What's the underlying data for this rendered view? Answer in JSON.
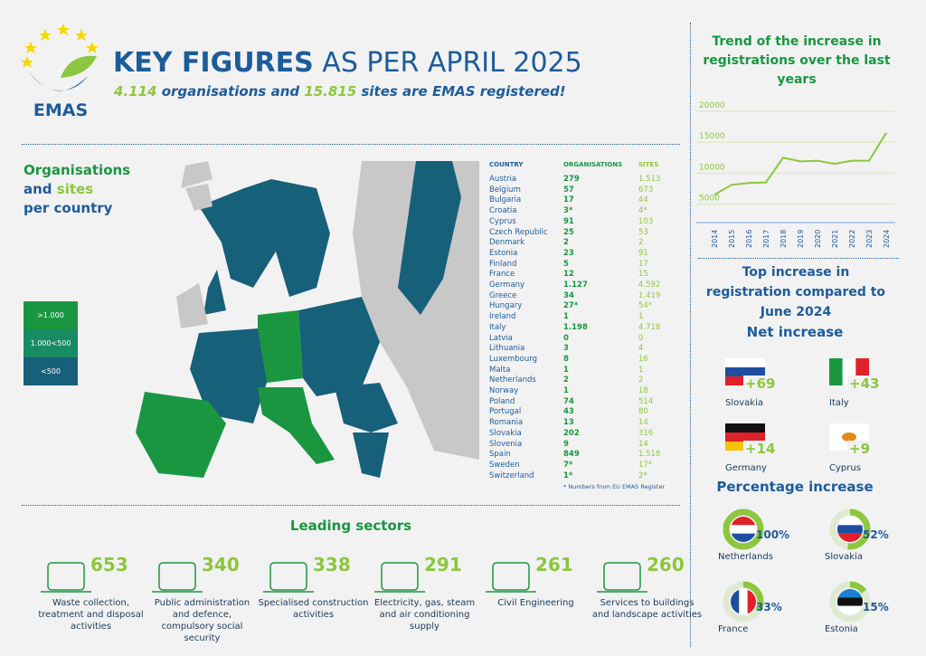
{
  "header": {
    "logo_text": "EMAS",
    "title_bold": "KEY FIGURES",
    "title_rest": "AS PER APRIL 2025",
    "subtitle": {
      "organisations": "4.114",
      "middle": "organisations and",
      "sites": "15.815",
      "end": "sites are EMAS registered!"
    }
  },
  "map": {
    "heading": {
      "line1": "Organisations",
      "and": "and",
      "sites": "sites",
      "line3": "per country"
    },
    "legend": [
      ">1.000",
      "1.000<500",
      "<500"
    ]
  },
  "table": {
    "headers": [
      "COUNTRY",
      "ORGANISATIONS",
      "SITES"
    ],
    "rows": [
      [
        "Austria",
        "279",
        "1.513"
      ],
      [
        "Belgium",
        "57",
        "673"
      ],
      [
        "Bulgaria",
        "17",
        "44"
      ],
      [
        "Croatia",
        "3*",
        "4*"
      ],
      [
        "Cyprus",
        "91",
        "103"
      ],
      [
        "Czech Republic",
        "25",
        "53"
      ],
      [
        "Denmark",
        "2",
        "2"
      ],
      [
        "Estonia",
        "23",
        "91"
      ],
      [
        "Finland",
        "5",
        "17"
      ],
      [
        "France",
        "12",
        "15"
      ],
      [
        "Germany",
        "1.127",
        "4.592"
      ],
      [
        "Greece",
        "34",
        "1.419"
      ],
      [
        "Hungary",
        "27*",
        "54*"
      ],
      [
        "Ireland",
        "1",
        "1"
      ],
      [
        "Italy",
        "1.198",
        "4.718"
      ],
      [
        "Latvia",
        "0",
        "0"
      ],
      [
        "Lithuania",
        "3",
        "4"
      ],
      [
        "Luxembourg",
        "8",
        "16"
      ],
      [
        "Malta",
        "1",
        "1"
      ],
      [
        "Netherlands",
        "2",
        "2"
      ],
      [
        "Norway",
        "1",
        "18"
      ],
      [
        "Poland",
        "74",
        "514"
      ],
      [
        "Portugal",
        "43",
        "80"
      ],
      [
        "Romania",
        "13",
        "14"
      ],
      [
        "Slovakia",
        "202",
        "316"
      ],
      [
        "Slovenia",
        "9",
        "14"
      ],
      [
        "Spain",
        "849",
        "1.518"
      ],
      [
        "Sweden",
        "7*",
        "17*"
      ],
      [
        "Switzerland",
        "1*",
        "2*"
      ]
    ],
    "footnote": "* Numbers from EU EMAS Register"
  },
  "chart_data": {
    "type": "line",
    "title": "Trend of the increase in registrations over the last years",
    "x": [
      "2014",
      "2015",
      "2016",
      "2017",
      "2018",
      "2019",
      "2020",
      "2021",
      "2022",
      "2023",
      "2024"
    ],
    "series": [
      {
        "name": "registrations",
        "color": "#8dc63f",
        "values": [
          6500,
          8100,
          8400,
          8500,
          12500,
          11900,
          12000,
          11500,
          12000,
          12000,
          16500
        ]
      }
    ],
    "ylim": [
      2000,
      20000
    ],
    "yticks": [
      5000,
      10000,
      15000,
      20000
    ],
    "grid": true
  },
  "top_increase": {
    "title": "Top increase in registration compared to June 2024",
    "net_title": "Net increase",
    "net": [
      {
        "country": "Slovakia",
        "value": "+69"
      },
      {
        "country": "Italy",
        "value": "+43"
      },
      {
        "country": "Germany",
        "value": "+14"
      },
      {
        "country": "Cyprus",
        "value": "+9"
      }
    ],
    "pct_title": "Percentage increase",
    "pct": [
      {
        "country": "Netherlands",
        "value": {
          "value": 100,
          "label": "100%"
        }
      },
      {
        "country": "Slovakia",
        "value": {
          "value": 52,
          "label": "52%"
        }
      },
      {
        "country": "France",
        "value": {
          "value": 33,
          "label": "33%"
        }
      },
      {
        "country": "Estonia",
        "value": {
          "value": 15,
          "label": "15%"
        }
      }
    ]
  },
  "sectors": {
    "title": "Leading sectors",
    "items": [
      {
        "value": 653,
        "label": "Waste collection, treatment and disposal activities"
      },
      {
        "value": 340,
        "label": "Public administration and defence, compulsory social security"
      },
      {
        "value": 338,
        "label": "Specialised construction activities"
      },
      {
        "value": 291,
        "label": "Electricity, gas, steam and air conditioning supply"
      },
      {
        "value": 261,
        "label": "Civil Engineering"
      },
      {
        "value": 260,
        "label": "Services to buildings and landscape activities"
      }
    ]
  }
}
